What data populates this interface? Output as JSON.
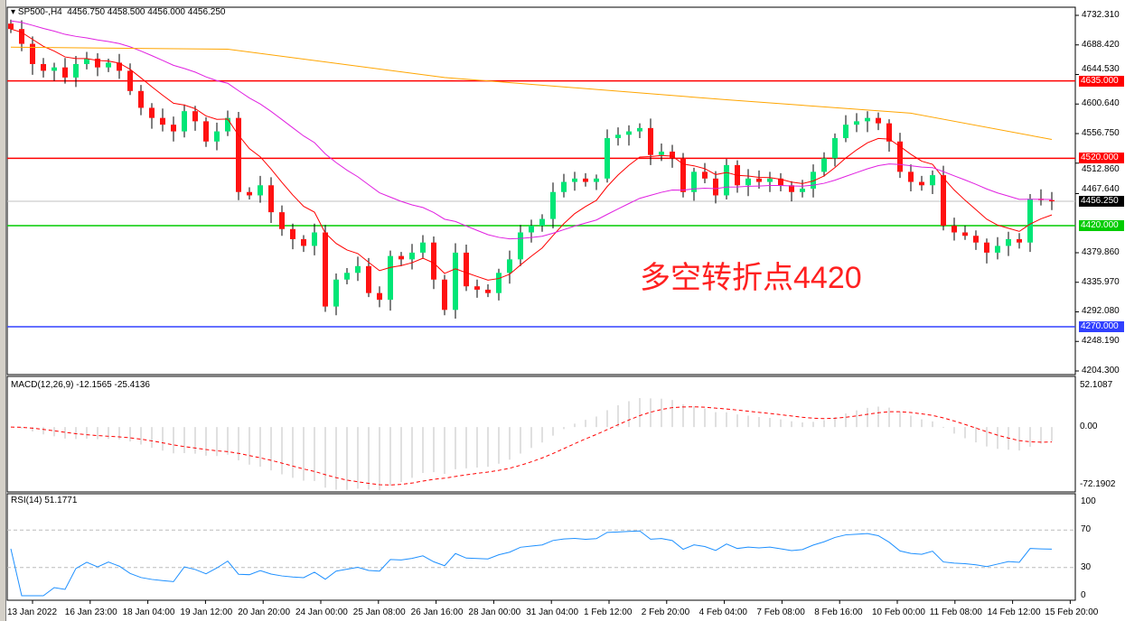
{
  "header": {
    "symbol": "SP500-,H4",
    "ohlc": "4456.750 4458.500 4456.000 4456.250"
  },
  "annotation": "多空转折点4420",
  "colors": {
    "bull": "#00e676",
    "bear": "#ff1111",
    "ma_fast": "#ff0000",
    "ma_mid": "#e020e0",
    "ma_slow": "#ffa500",
    "resistance": "#ff0000",
    "support": "#00cc00",
    "low_line": "#3040ff",
    "macd_hist": "#c0c0c0",
    "macd_signal": "#ff0000",
    "rsi": "#1e90ff"
  },
  "chart_data": [
    {
      "type": "candlestick",
      "title": "SP500-,H4",
      "ylim": [
        4204.3,
        4732.31
      ],
      "y_ticks": [
        "4732.310",
        "4688.420",
        "4644.530",
        "4600.640",
        "4556.750",
        "4512.860",
        "4467.640",
        "4379.860",
        "4335.970",
        "4292.080",
        "4248.190",
        "4204.300"
      ],
      "close": [
        4712,
        4690,
        4660,
        4650,
        4655,
        4640,
        4660,
        4668,
        4655,
        4662,
        4650,
        4620,
        4595,
        4580,
        4570,
        4560,
        4590,
        4575,
        4545,
        4560,
        4580,
        4470,
        4465,
        4480,
        4440,
        4415,
        4400,
        4390,
        4410,
        4300,
        4340,
        4350,
        4360,
        4320,
        4310,
        4375,
        4370,
        4380,
        4395,
        4340,
        4295,
        4380,
        4330,
        4325,
        4320,
        4350,
        4370,
        4410,
        4420,
        4430,
        4470,
        4485,
        4490,
        4485,
        4490,
        4550,
        4555,
        4560,
        4565,
        4525,
        4530,
        4520,
        4470,
        4500,
        4490,
        4465,
        4510,
        4480,
        4490,
        4485,
        4490,
        4480,
        4470,
        4475,
        4500,
        4520,
        4550,
        4570,
        4575,
        4580,
        4572,
        4545,
        4500,
        4485,
        4480,
        4495,
        4420,
        4410,
        4405,
        4395,
        4380,
        4390,
        4400,
        4395,
        4460,
        4458,
        4456.25
      ],
      "ma_slow_points": [
        [
          0,
          4685
        ],
        [
          20,
          4682
        ],
        [
          40,
          4640
        ],
        [
          66,
          4607
        ],
        [
          83,
          4587
        ],
        [
          96,
          4548
        ]
      ],
      "levels": [
        {
          "label": "4635.000",
          "value": 4635,
          "kind": "resistance"
        },
        {
          "label": "4520.000",
          "value": 4520,
          "kind": "resistance"
        },
        {
          "label": "4420.000",
          "value": 4420,
          "kind": "support"
        },
        {
          "label": "4270.000",
          "value": 4270,
          "kind": "low_line"
        }
      ],
      "current": {
        "label": "4456.250",
        "value": 4456.25
      },
      "x_ticks": [
        "13 Jan 2022",
        "16 Jan 23:00",
        "18 Jan 04:00",
        "19 Jan 12:00",
        "20 Jan 20:00",
        "24 Jan 00:00",
        "25 Jan 08:00",
        "26 Jan 16:00",
        "28 Jan 00:00",
        "31 Jan 04:00",
        "1 Feb 12:00",
        "2 Feb 20:00",
        "4 Feb 04:00",
        "7 Feb 08:00",
        "8 Feb 16:00",
        "10 Feb 00:00",
        "11 Feb 08:00",
        "14 Feb 12:00",
        "15 Feb 20:00"
      ]
    },
    {
      "type": "bar",
      "title": "MACD(12,26,9) -12.1565 -25.4136",
      "ylim": [
        -72.1902,
        52.1087
      ],
      "y_ticks": [
        "52.1087",
        "0.00",
        "-72.1902"
      ]
    },
    {
      "type": "line",
      "title": "RSI(14) 51.1771",
      "ylim": [
        0,
        100
      ],
      "y_ticks": [
        "100",
        "70",
        "30",
        "0"
      ],
      "levels": [
        70,
        30
      ]
    }
  ]
}
